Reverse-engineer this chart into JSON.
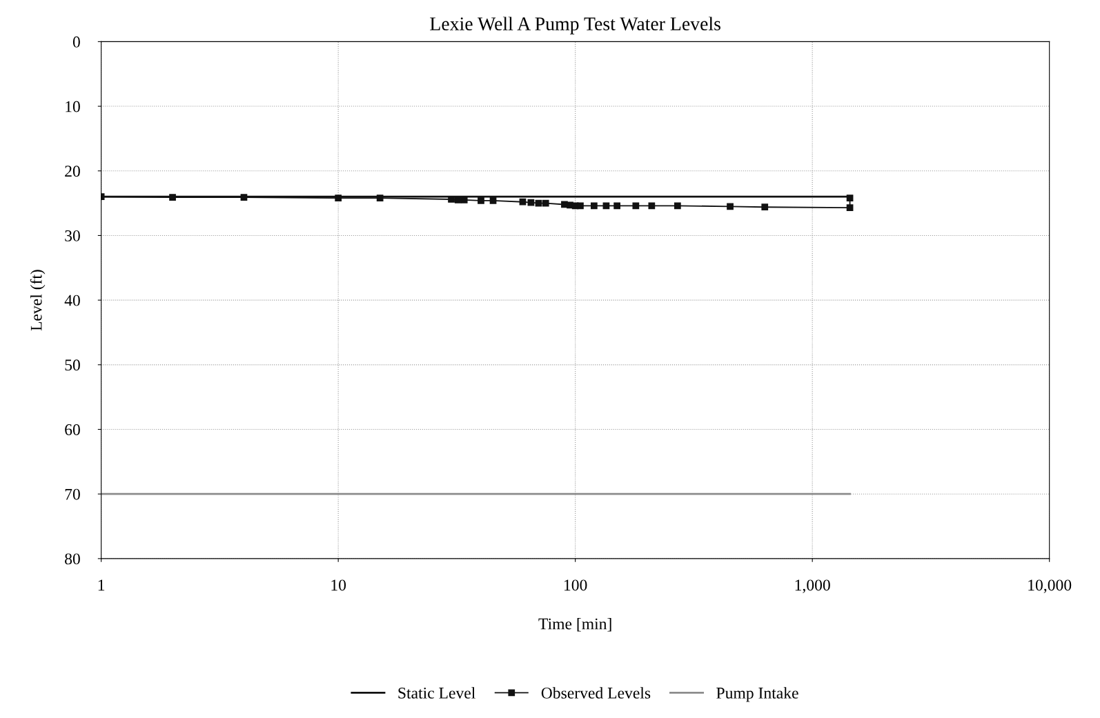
{
  "chart_data": {
    "type": "line",
    "title": "Lexie Well A Pump Test Water Levels",
    "xlabel": "Time [min]",
    "ylabel": "Level (ft)",
    "log": "x",
    "xlim": [
      1,
      10000
    ],
    "xticks": [
      1,
      10,
      100,
      {
        "value": 1000,
        "label": "1,000"
      },
      {
        "value": 10000,
        "label": "10,000"
      }
    ],
    "ylim": [
      80,
      0
    ],
    "yticks": [
      0,
      10,
      20,
      30,
      40,
      50,
      60,
      70,
      80
    ],
    "grid": true,
    "legend": "bottom",
    "series": [
      {
        "name": "Static Level",
        "color": "#111111",
        "x": [
          1,
          1440
        ],
        "values": [
          24,
          24
        ]
      },
      {
        "name": "Observed Levels",
        "color": "#111111",
        "marker": "square",
        "x": [
          1,
          2,
          4,
          10,
          15,
          30,
          32,
          34,
          40,
          45,
          60,
          65,
          70,
          75,
          90,
          95,
          100,
          105,
          120,
          135,
          150,
          180,
          210,
          270,
          450,
          630,
          1440,
          1440
        ],
        "values": [
          24,
          24.1,
          24.1,
          24.2,
          24.2,
          24.4,
          24.5,
          24.5,
          24.6,
          24.6,
          24.8,
          24.9,
          25,
          25,
          25.2,
          25.3,
          25.4,
          25.4,
          25.4,
          25.4,
          25.4,
          25.4,
          25.4,
          25.4,
          25.5,
          25.6,
          25.7,
          24.2
        ]
      },
      {
        "name": "Pump Intake",
        "color": "#8c8c8c",
        "x": [
          1,
          1440
        ],
        "values": [
          70,
          70
        ]
      }
    ]
  }
}
